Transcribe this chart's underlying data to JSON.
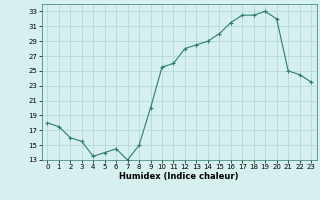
{
  "x": [
    0,
    1,
    2,
    3,
    4,
    5,
    6,
    7,
    8,
    9,
    10,
    11,
    12,
    13,
    14,
    15,
    16,
    17,
    18,
    19,
    20,
    21,
    22,
    23
  ],
  "y": [
    18,
    17.5,
    16,
    15.5,
    13.5,
    14,
    14.5,
    13,
    15,
    20,
    25.5,
    26,
    28,
    28.5,
    29,
    30,
    31.5,
    32.5,
    32.5,
    33,
    32,
    25,
    24.5,
    23.5
  ],
  "line_color": "#2e7d6e",
  "bg_color": "#d6efef",
  "grid_color": "#b0d4d4",
  "xlabel": "Humidex (Indice chaleur)",
  "ylim": [
    13,
    34
  ],
  "yticks": [
    13,
    15,
    17,
    19,
    21,
    23,
    25,
    27,
    29,
    31,
    33
  ],
  "xlim": [
    -0.5,
    23.5
  ],
  "xticks": [
    0,
    1,
    2,
    3,
    4,
    5,
    6,
    7,
    8,
    9,
    10,
    11,
    12,
    13,
    14,
    15,
    16,
    17,
    18,
    19,
    20,
    21,
    22,
    23
  ]
}
